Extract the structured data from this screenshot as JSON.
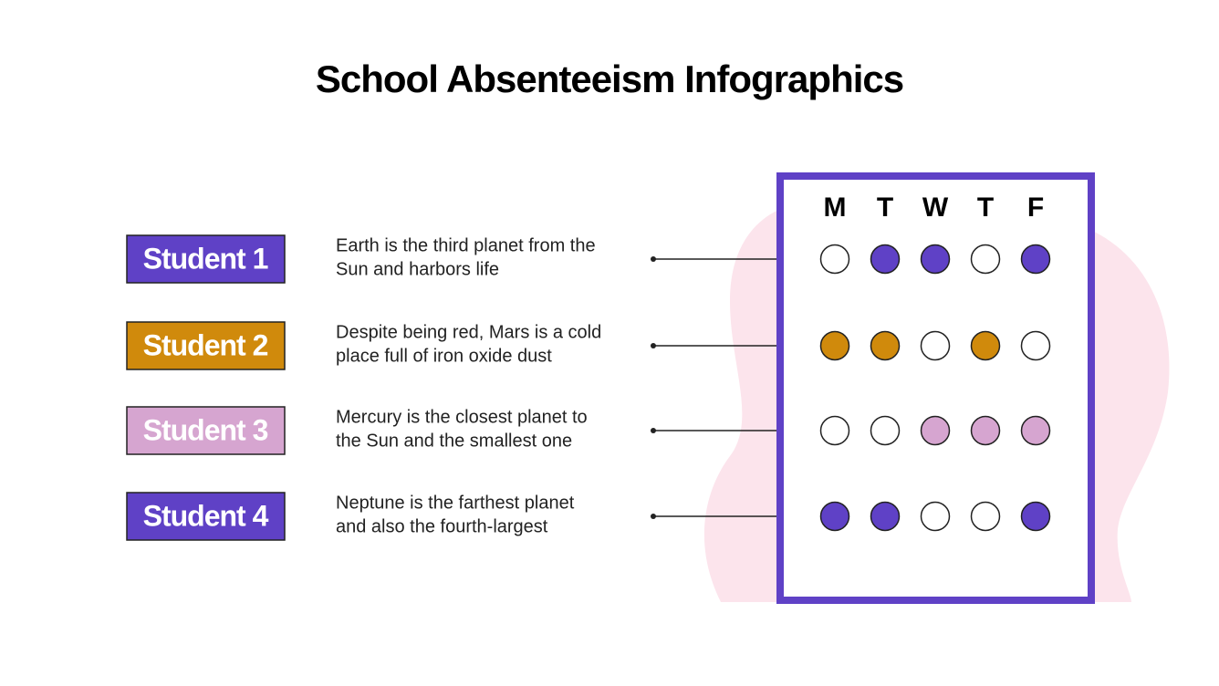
{
  "title": "School Absenteeism Infographics",
  "days": [
    "M",
    "T",
    "W",
    "T",
    "F"
  ],
  "students": [
    {
      "label": "Student 1",
      "color": "#5f41c6",
      "description": [
        "Earth is the third planet from the",
        "Sun and harbors life"
      ],
      "attendance": [
        false,
        true,
        true,
        false,
        true
      ]
    },
    {
      "label": "Student 2",
      "color": "#d08a0c",
      "description": [
        "Despite being red, Mars is a cold",
        "place full of iron oxide dust"
      ],
      "attendance": [
        true,
        true,
        false,
        true,
        false
      ]
    },
    {
      "label": "Student 3",
      "color": "#d6a5d0",
      "description": [
        "Mercury is the closest planet to",
        "the Sun and the smallest one"
      ],
      "attendance": [
        false,
        false,
        true,
        true,
        true
      ]
    },
    {
      "label": "Student 4",
      "color": "#5f41c6",
      "description": [
        "Neptune is the farthest planet",
        "and also the fourth-largest"
      ],
      "attendance": [
        true,
        true,
        false,
        false,
        true
      ]
    }
  ]
}
